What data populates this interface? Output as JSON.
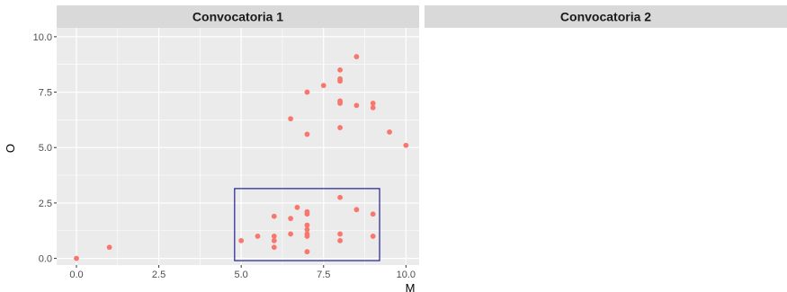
{
  "chart_data": {
    "type": "scatter",
    "xlabel": "M",
    "ylabel": "O",
    "xlim": [
      -0.6,
      10.4
    ],
    "ylim": [
      -0.3,
      10.4
    ],
    "x_ticks": [
      "0.0",
      "2.5",
      "5.0",
      "7.5",
      "10.0"
    ],
    "y_ticks": [
      "0.0",
      "2.5",
      "5.0",
      "7.5",
      "10.0"
    ],
    "grid": true,
    "facets": [
      {
        "label": "Convocatoria 1",
        "highlight_box": {
          "x": [
            4.8,
            9.2
          ],
          "y": [
            -0.1,
            3.15
          ],
          "color": "#1f1f8f"
        },
        "points": [
          {
            "x": 0,
            "y": 0
          },
          {
            "x": 1,
            "y": 0.5
          },
          {
            "x": 5,
            "y": 0.8
          },
          {
            "x": 5.5,
            "y": 1.0
          },
          {
            "x": 6,
            "y": 1.9
          },
          {
            "x": 6,
            "y": 1.0
          },
          {
            "x": 6,
            "y": 0.8
          },
          {
            "x": 6,
            "y": 0.5
          },
          {
            "x": 6.5,
            "y": 1.8
          },
          {
            "x": 6.5,
            "y": 1.1
          },
          {
            "x": 6.5,
            "y": 6.3
          },
          {
            "x": 6.7,
            "y": 2.3
          },
          {
            "x": 7,
            "y": 2.1
          },
          {
            "x": 7,
            "y": 2.0
          },
          {
            "x": 7,
            "y": 1.5
          },
          {
            "x": 7,
            "y": 1.3
          },
          {
            "x": 7,
            "y": 1.1
          },
          {
            "x": 7,
            "y": 1.0
          },
          {
            "x": 7,
            "y": 0.3
          },
          {
            "x": 7,
            "y": 5.6
          },
          {
            "x": 7,
            "y": 7.5
          },
          {
            "x": 7.5,
            "y": 7.8
          },
          {
            "x": 8,
            "y": 2.75
          },
          {
            "x": 8,
            "y": 1.1
          },
          {
            "x": 8,
            "y": 0.8
          },
          {
            "x": 8,
            "y": 5.9
          },
          {
            "x": 8,
            "y": 7.0
          },
          {
            "x": 8,
            "y": 7.1
          },
          {
            "x": 8,
            "y": 8.0
          },
          {
            "x": 8,
            "y": 8.1
          },
          {
            "x": 8,
            "y": 8.5
          },
          {
            "x": 8.5,
            "y": 2.2
          },
          {
            "x": 8.5,
            "y": 6.9
          },
          {
            "x": 8.5,
            "y": 9.1
          },
          {
            "x": 9,
            "y": 2.0
          },
          {
            "x": 9,
            "y": 1.0
          },
          {
            "x": 9,
            "y": 6.8
          },
          {
            "x": 9,
            "y": 7.0
          },
          {
            "x": 9.5,
            "y": 5.7
          },
          {
            "x": 10,
            "y": 5.1
          }
        ]
      },
      {
        "label": "Convocatoria 2",
        "points": []
      }
    ],
    "colors": {
      "point": "#f8766d",
      "panel_bg": "#ebebeb",
      "strip_bg": "#d9d9d9",
      "grid": "#ffffff",
      "box": "#1f1f8f"
    }
  }
}
